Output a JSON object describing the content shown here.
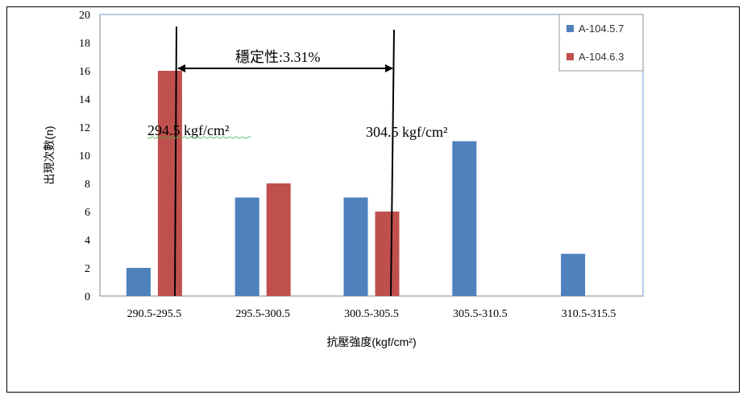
{
  "chart_data": {
    "type": "bar",
    "categories": [
      "290.5-295.5",
      "295.5-300.5",
      "300.5-305.5",
      "305.5-310.5",
      "310.5-315.5"
    ],
    "series": [
      {
        "name": "A-104.5.7",
        "values": [
          2,
          7,
          7,
          11,
          3
        ],
        "color": "#4F81BD"
      },
      {
        "name": "A-104.6.3",
        "values": [
          16,
          8,
          6,
          0,
          0
        ],
        "color": "#C0504D"
      }
    ],
    "xlabel": "抗壓強度(kgf/cm²)",
    "ylabel": "出現次數(n)",
    "ylim": [
      0,
      20
    ],
    "yticks": [
      0,
      2,
      4,
      6,
      8,
      10,
      12,
      14,
      16,
      18,
      20
    ],
    "grid": false,
    "legend": "top-right",
    "annotations": {
      "stability": "穩定性:3.31%",
      "left_line": "294.5 kgf/cm²",
      "right_line": "304.5 kgf/cm²"
    },
    "markers": [
      294.5,
      304.5
    ]
  }
}
